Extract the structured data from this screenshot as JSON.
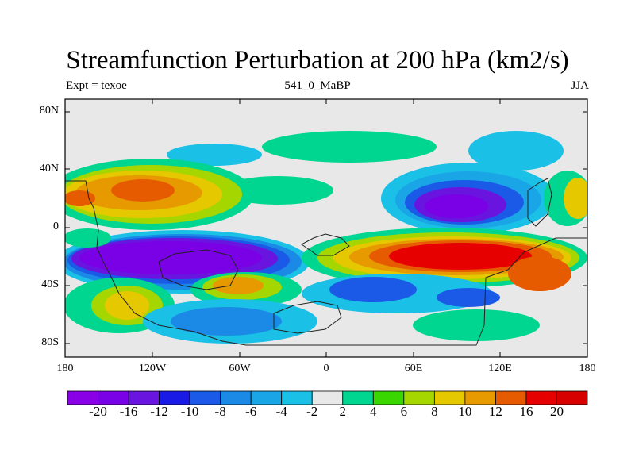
{
  "title": "Streamfunction Perturbation at 200 hPa (km2/s)",
  "subtitle_left": "Expt = texoe",
  "subtitle_center": "541_0_MaBP",
  "subtitle_right": "JJA",
  "lat_labels": [
    "80N",
    "40N",
    "0",
    "40S",
    "80S"
  ],
  "lon_labels": [
    "180",
    "120W",
    "60W",
    "0",
    "60E",
    "120E",
    "180"
  ],
  "colorbar": {
    "labels": [
      "-20",
      "-16",
      "-12",
      "-10",
      "-8",
      "-6",
      "-4",
      "-2",
      "2",
      "4",
      "6",
      "8",
      "10",
      "12",
      "16",
      "20"
    ],
    "colors": [
      "#8a00e6",
      "#7a00e6",
      "#6a14e0",
      "#1a1ae6",
      "#1a5ae6",
      "#1a8ae6",
      "#1aa6e6",
      "#1ac0e6",
      "#e8e8e8",
      "#00d68f",
      "#3ad600",
      "#a6d600",
      "#e6c800",
      "#e69a00",
      "#e65a00",
      "#e60000",
      "#d60000"
    ]
  },
  "chart_data": {
    "type": "filled-contour-map",
    "title": "Streamfunction Perturbation at 200 hPa (km2/s)",
    "variable": "Streamfunction perturbation",
    "level": "200 hPa",
    "units": "km2/s",
    "season": "JJA",
    "x_ticks": [
      "180",
      "120W",
      "60W",
      "0",
      "60E",
      "120E",
      "180"
    ],
    "y_ticks": [
      "80N",
      "40N",
      "0",
      "40S",
      "80S"
    ],
    "levels": [
      -20,
      -16,
      -12,
      -10,
      -8,
      -6,
      -4,
      -2,
      2,
      4,
      6,
      8,
      10,
      12,
      16,
      20
    ]
  }
}
